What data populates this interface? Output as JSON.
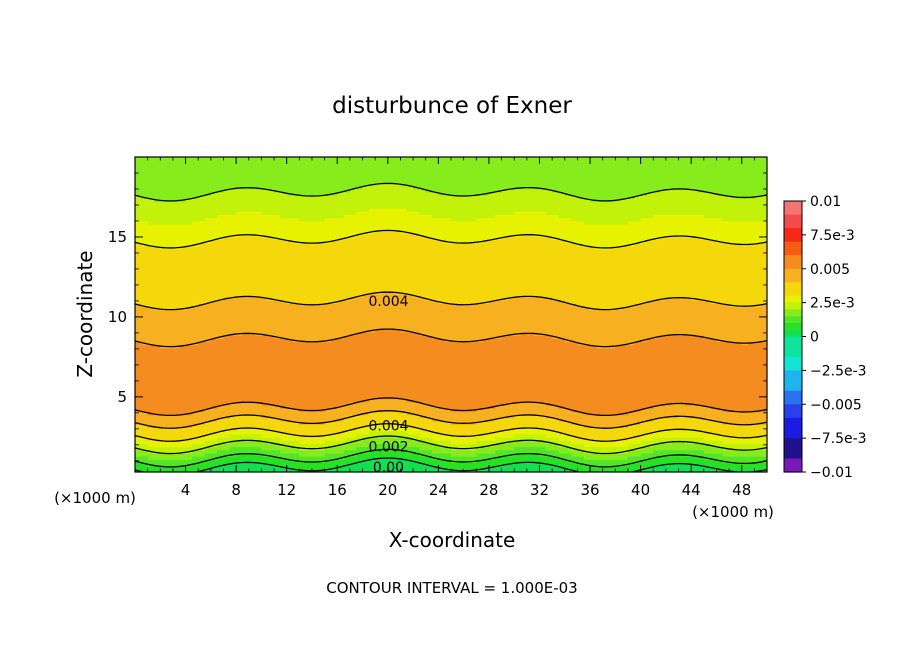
{
  "chart_data": {
    "type": "heatmap",
    "title": "disturbunce of Exner",
    "xlabel": "X-coordinate",
    "ylabel": "Z-coordinate",
    "x_unit_left": "(×1000 m)",
    "x_unit_right": "(×1000 m)",
    "footer": "CONTOUR INTERVAL = 1.000E-03",
    "xlim": [
      0,
      50
    ],
    "ylim": [
      0.3,
      20
    ],
    "x_ticks": [
      4,
      8,
      12,
      16,
      20,
      24,
      28,
      32,
      36,
      40,
      44,
      48
    ],
    "y_ticks": [
      5,
      10,
      15
    ],
    "grid": false,
    "profile": [
      {
        "z": 0.3,
        "value": 0.0
      },
      {
        "z": 1.0,
        "value": 0.0008
      },
      {
        "z": 2.0,
        "value": 0.002
      },
      {
        "z": 3.0,
        "value": 0.0033
      },
      {
        "z": 4.0,
        "value": 0.0045
      },
      {
        "z": 5.0,
        "value": 0.0058
      },
      {
        "z": 6.5,
        "value": 0.0059
      },
      {
        "z": 8.5,
        "value": 0.0051
      },
      {
        "z": 10.0,
        "value": 0.0043
      },
      {
        "z": 11.0,
        "value": 0.004
      },
      {
        "z": 14.0,
        "value": 0.0033
      },
      {
        "z": 16.0,
        "value": 0.0026
      },
      {
        "z": 17.8,
        "value": 0.002
      },
      {
        "z": 20.0,
        "value": 0.0015
      }
    ],
    "contour_labels": [
      {
        "text": "0.004",
        "x": 18,
        "z": 11.0
      },
      {
        "text": "0.004",
        "x": 18,
        "z": 3.2
      },
      {
        "text": "0.002",
        "x": 18,
        "z": 1.9
      },
      {
        "text": "0.00",
        "x": 18,
        "z": 0.6
      }
    ],
    "colorbar": {
      "min": -0.01,
      "max": 0.01,
      "levels": [
        {
          "value": 0.01,
          "color": "#f49090"
        },
        {
          "value": 0.009,
          "color": "#f47474"
        },
        {
          "value": 0.008,
          "color": "#f44a4a"
        },
        {
          "value": 0.007,
          "color": "#f42a16"
        },
        {
          "value": 0.006,
          "color": "#f55e10"
        },
        {
          "value": 0.005,
          "color": "#f58c20"
        },
        {
          "value": 0.004,
          "color": "#f7b020"
        },
        {
          "value": 0.003,
          "color": "#f4d80c"
        },
        {
          "value": 0.0025,
          "color": "#e6f200"
        },
        {
          "value": 0.002,
          "color": "#c2f20a"
        },
        {
          "value": 0.0015,
          "color": "#86ec1c"
        },
        {
          "value": 0.001,
          "color": "#52e62a"
        },
        {
          "value": 0.0005,
          "color": "#28e222"
        },
        {
          "value": 0.0,
          "color": "#12e050"
        },
        {
          "value": -0.0015,
          "color": "#10e49c"
        },
        {
          "value": -0.0025,
          "color": "#14e4d4"
        },
        {
          "value": -0.004,
          "color": "#1eb4ee"
        },
        {
          "value": -0.005,
          "color": "#2a72f0"
        },
        {
          "value": -0.006,
          "color": "#2a40ea"
        },
        {
          "value": -0.0075,
          "color": "#1c1ce0"
        },
        {
          "value": -0.009,
          "color": "#22118c"
        },
        {
          "value": -0.01,
          "color": "#7a18b8"
        }
      ],
      "tick_labels": [
        "0.01",
        "7.5e-3",
        "0.005",
        "2.5e-3",
        "0",
        "−2.5e-3",
        "−0.005",
        "−7.5e-3",
        "−0.01"
      ],
      "tick_values": [
        0.01,
        0.0075,
        0.005,
        0.0025,
        0,
        -0.0025,
        -0.005,
        -0.0075,
        -0.01
      ]
    }
  }
}
